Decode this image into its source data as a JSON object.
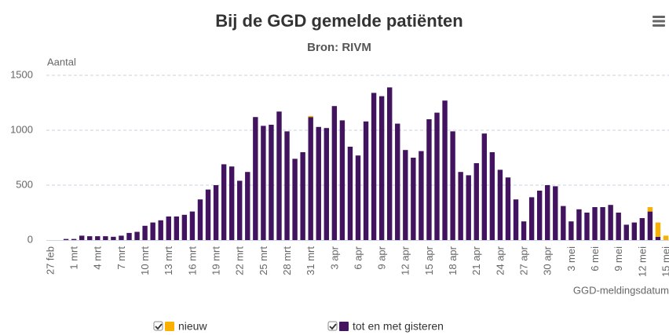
{
  "chart_data": {
    "type": "bar",
    "stacked": true,
    "title": "Bij de GGD gemelde patiënten",
    "subtitle": "Bron: RIVM",
    "ylabel": "Aantal",
    "xlabel": "GGD-meldingsdatum",
    "categories": [
      "27 feb",
      null,
      null,
      "1 mrt",
      null,
      null,
      "4 mrt",
      null,
      null,
      "7 mrt",
      null,
      null,
      "10 mrt",
      null,
      null,
      "13 mrt",
      null,
      null,
      "16 mrt",
      null,
      null,
      "19 mrt",
      null,
      null,
      "22 mrt",
      null,
      null,
      "25 mrt",
      null,
      null,
      "28 mrt",
      null,
      null,
      "31 mrt",
      null,
      null,
      "3 apr",
      null,
      null,
      "6 apr",
      null,
      null,
      "9 apr",
      null,
      null,
      "12 apr",
      null,
      null,
      "15 apr",
      null,
      null,
      "18 apr",
      null,
      null,
      "21 apr",
      null,
      null,
      "24 apr",
      null,
      null,
      "27 apr",
      null,
      null,
      "30 apr",
      null,
      null,
      "3 mei",
      null,
      null,
      "6 mei",
      null,
      null,
      "9 mei",
      null,
      null,
      "12 mei",
      null,
      null,
      "15 mei"
    ],
    "series": [
      {
        "name": "nieuw",
        "color": "#f9b000",
        "values": [
          0,
          0,
          0,
          0,
          0,
          0,
          0,
          0,
          0,
          0,
          0,
          0,
          0,
          0,
          0,
          0,
          0,
          0,
          0,
          0,
          0,
          0,
          0,
          0,
          0,
          0,
          0,
          0,
          0,
          0,
          0,
          0,
          0,
          10,
          0,
          0,
          0,
          0,
          0,
          0,
          0,
          0,
          0,
          0,
          0,
          0,
          0,
          0,
          0,
          0,
          0,
          0,
          0,
          0,
          0,
          0,
          0,
          0,
          0,
          0,
          0,
          0,
          0,
          0,
          0,
          0,
          0,
          0,
          0,
          0,
          0,
          0,
          0,
          0,
          0,
          0,
          40,
          130,
          40
        ]
      },
      {
        "name": "tot en met gisteren",
        "color": "#42145f",
        "values": [
          0,
          0,
          10,
          10,
          40,
          35,
          35,
          35,
          30,
          40,
          65,
          75,
          130,
          160,
          180,
          215,
          215,
          230,
          260,
          370,
          460,
          500,
          690,
          670,
          540,
          620,
          1120,
          1040,
          1050,
          1170,
          990,
          740,
          800,
          1120,
          1030,
          1020,
          1220,
          1090,
          850,
          770,
          1080,
          1340,
          1310,
          1390,
          1060,
          820,
          750,
          810,
          1100,
          1160,
          1270,
          990,
          620,
          590,
          700,
          970,
          800,
          640,
          570,
          370,
          170,
          390,
          450,
          500,
          490,
          310,
          170,
          280,
          250,
          300,
          300,
          320,
          250,
          140,
          160,
          200,
          260,
          30,
          0
        ]
      }
    ],
    "ylim": [
      0,
      1500
    ],
    "yticks": [
      0,
      500,
      1000,
      1500
    ],
    "grid": true
  }
}
